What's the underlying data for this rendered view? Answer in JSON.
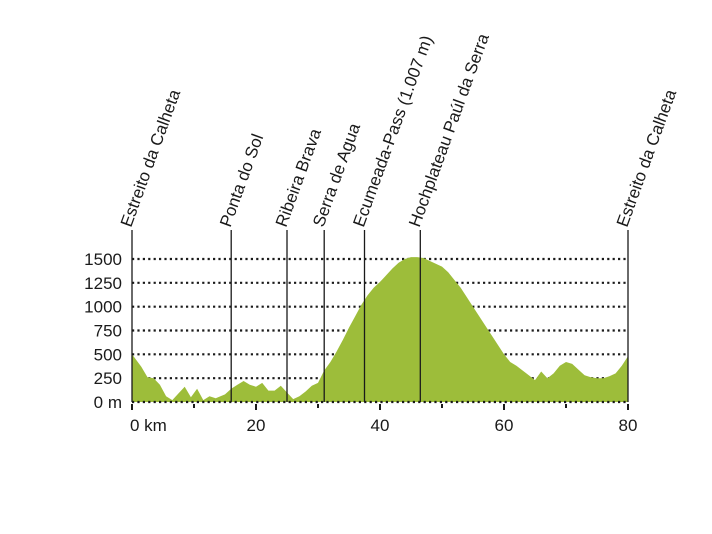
{
  "chart_data": {
    "type": "area",
    "title": "",
    "xlabel": "",
    "ylabel": "",
    "x_unit_label": "0 km",
    "y_unit_label": "0 m",
    "xlim": [
      0,
      80
    ],
    "ylim": [
      0,
      1500
    ],
    "x_ticks": [
      0,
      20,
      40,
      60,
      80
    ],
    "x_tick_labels": [
      "0 km",
      "20",
      "40",
      "60",
      "80"
    ],
    "y_ticks": [
      0,
      250,
      500,
      750,
      1000,
      1250,
      1500
    ],
    "y_tick_labels": [
      "0 m",
      "250",
      "500",
      "750",
      "1000",
      "1250",
      "1500"
    ],
    "grid": "horizontal-dotted",
    "fill_color": "#9dbd3a",
    "line_color": "#1a1a1a",
    "series": [
      {
        "x": [
          0,
          1.5,
          2.5,
          3.5,
          4.5,
          5.5,
          6.5,
          7.5,
          8.5,
          9.5,
          10.5,
          11.5,
          12.5,
          13.5,
          15,
          16,
          17,
          18,
          19,
          20,
          21,
          22,
          23,
          24,
          25,
          26,
          27,
          28,
          29,
          30,
          31,
          32,
          33,
          34,
          35,
          36,
          37,
          38,
          39,
          40,
          41,
          42,
          43,
          44,
          45,
          46,
          47,
          48,
          49,
          50,
          51,
          52,
          53,
          54,
          55,
          56,
          57,
          58,
          59,
          60,
          61,
          62,
          63,
          64,
          65,
          66,
          67,
          68,
          69,
          70,
          71,
          72,
          73,
          74,
          75,
          76,
          77,
          78,
          79,
          80
        ],
        "values": [
          500,
          370,
          260,
          250,
          180,
          60,
          20,
          90,
          160,
          50,
          140,
          20,
          60,
          40,
          80,
          140,
          180,
          220,
          180,
          160,
          200,
          120,
          120,
          170,
          100,
          30,
          60,
          110,
          170,
          200,
          330,
          420,
          530,
          650,
          780,
          900,
          1020,
          1120,
          1200,
          1260,
          1330,
          1400,
          1460,
          1500,
          1520,
          1520,
          1510,
          1480,
          1450,
          1420,
          1360,
          1280,
          1200,
          1100,
          1000,
          900,
          800,
          700,
          600,
          500,
          420,
          380,
          330,
          280,
          230,
          320,
          250,
          300,
          380,
          420,
          400,
          340,
          280,
          260,
          250,
          250,
          270,
          300,
          380,
          480
        ]
      }
    ],
    "places": [
      {
        "km": 0,
        "name": "Estreito da Calheta"
      },
      {
        "km": 16,
        "name": "Ponta do Sol"
      },
      {
        "km": 25,
        "name": "Ribeira Brava"
      },
      {
        "km": 31,
        "name": "Serra de Agua"
      },
      {
        "km": 37.5,
        "name": "Ecumeada-Pass (1.007 m)"
      },
      {
        "km": 46.5,
        "name": "Hochplateau Paúl da Serra"
      },
      {
        "km": 80,
        "name": "Estreito da Calheta"
      }
    ]
  }
}
